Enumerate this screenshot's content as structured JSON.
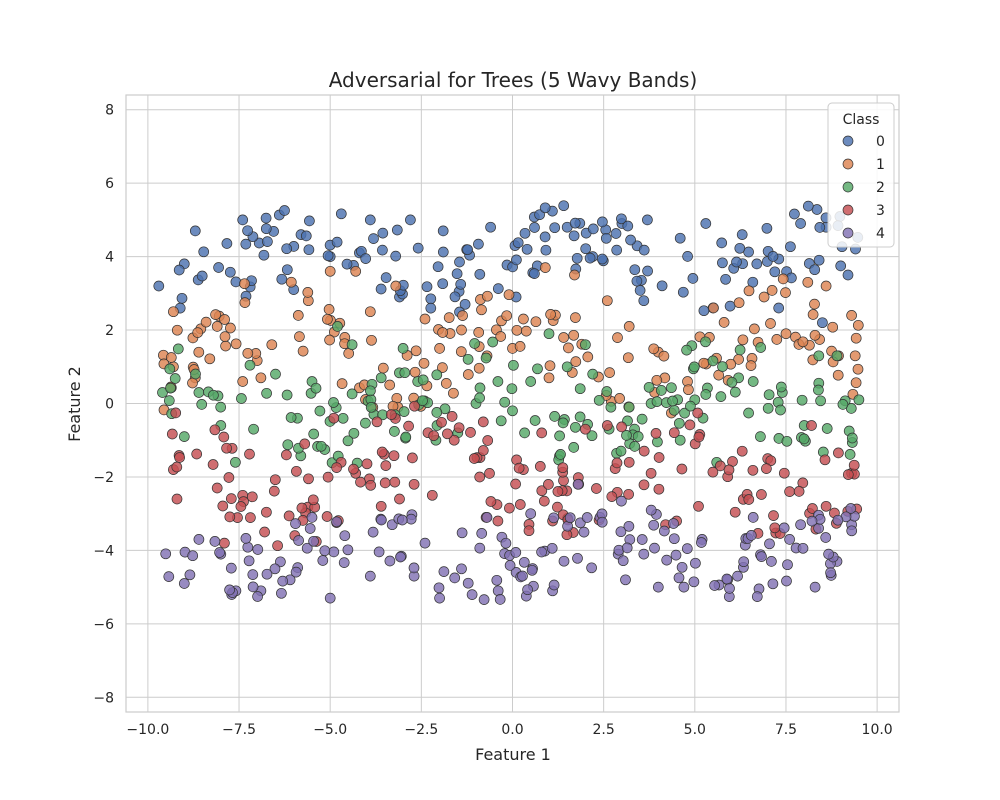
{
  "chart_data": {
    "type": "scatter",
    "title": "Adversarial for Trees (5 Wavy Bands)",
    "xlabel": "Feature 1",
    "ylabel": "Feature 2",
    "xlim": [
      -10.6,
      10.6
    ],
    "ylim": [
      -8.4,
      8.4
    ],
    "xticks": [
      -10.0,
      -7.5,
      -5.0,
      -2.5,
      0.0,
      2.5,
      5.0,
      7.5,
      10.0
    ],
    "xtick_labels": [
      "−10.0",
      "−7.5",
      "−5.0",
      "−2.5",
      "0.0",
      "2.5",
      "5.0",
      "7.5",
      "10.0"
    ],
    "yticks": [
      -8,
      -6,
      -4,
      -2,
      0,
      2,
      4,
      6,
      8
    ],
    "ytick_labels": [
      "−8",
      "−6",
      "−4",
      "−2",
      "0",
      "2",
      "4",
      "6",
      "8"
    ],
    "grid": true,
    "legend": {
      "title": "Class",
      "placement": "top-right"
    },
    "colors": [
      "#4c72b0",
      "#dd8452",
      "#55a868",
      "#c44e52",
      "#8172b3"
    ],
    "edge_color": "#333333",
    "series": [
      {
        "name": "0",
        "center": 4.0,
        "amplitude": 0.6,
        "spread": 0.5,
        "points": [
          [
            -9.7,
            3.2
          ],
          [
            -8.7,
            4.7
          ],
          [
            -7.4,
            5.0
          ],
          [
            -5.8,
            4.6
          ],
          [
            -5.0,
            4.0
          ],
          [
            -3.9,
            5.0
          ],
          [
            -2.8,
            5.0
          ],
          [
            -1.9,
            4.7
          ],
          [
            -0.6,
            4.8
          ],
          [
            0.4,
            4.2
          ],
          [
            1.5,
            4.8
          ],
          [
            3.0,
            4.9
          ],
          [
            3.7,
            5.0
          ],
          [
            4.6,
            4.5
          ],
          [
            5.3,
            4.9
          ],
          [
            6.3,
            4.6
          ],
          [
            7.9,
            4.9
          ],
          [
            8.6,
            4.8
          ],
          [
            9.2,
            3.5
          ],
          [
            -6.0,
            3.1
          ],
          [
            -3.1,
            2.9
          ],
          [
            -1.3,
            2.7
          ],
          [
            0.1,
            2.9
          ],
          [
            3.6,
            2.8
          ],
          [
            5.5,
            2.6
          ],
          [
            7.3,
            2.6
          ],
          [
            8.5,
            2.2
          ],
          [
            -9.0,
            3.8
          ],
          [
            -4.2,
            4.1
          ],
          [
            2.2,
            4.0
          ],
          [
            6.7,
            3.8
          ]
        ]
      },
      {
        "name": "1",
        "center": 1.5,
        "amplitude": 0.8,
        "spread": 0.6,
        "points": [
          [
            -9.3,
            2.5
          ],
          [
            -9.3,
            1.0
          ],
          [
            -8.1,
            2.1
          ],
          [
            -7.4,
            0.6
          ],
          [
            -6.6,
            1.6
          ],
          [
            -5.6,
            2.8
          ],
          [
            -5.0,
            3.6
          ],
          [
            -4.3,
            3.6
          ],
          [
            -3.9,
            2.5
          ],
          [
            -3.2,
            3.2
          ],
          [
            -2.4,
            2.3
          ],
          [
            -2.0,
            1.5
          ],
          [
            -1.4,
            2.0
          ],
          [
            -0.7,
            1.3
          ],
          [
            0.3,
            2.3
          ],
          [
            0.9,
            3.7
          ],
          [
            1.7,
            3.5
          ],
          [
            2.6,
            2.8
          ],
          [
            3.2,
            2.1
          ],
          [
            4.0,
            1.4
          ],
          [
            4.8,
            0.6
          ],
          [
            5.4,
            1.8
          ],
          [
            6.2,
            1.2
          ],
          [
            6.9,
            2.9
          ],
          [
            7.5,
            1.9
          ],
          [
            8.1,
            3.3
          ],
          [
            8.6,
            3.2
          ],
          [
            9.3,
            2.4
          ],
          [
            9.4,
            1.3
          ],
          [
            -8.7,
            0.7
          ],
          [
            -4.6,
            1.8
          ],
          [
            1.0,
            0.7
          ],
          [
            3.9,
            0.3
          ],
          [
            -6.9,
            0.7
          ],
          [
            0.0,
            1.5
          ]
        ]
      },
      {
        "name": "2",
        "center": 0.0,
        "amplitude": 0.7,
        "spread": 0.6,
        "points": [
          [
            -9.6,
            0.3
          ],
          [
            -9.0,
            -0.9
          ],
          [
            -8.6,
            0.3
          ],
          [
            -7.6,
            -1.6
          ],
          [
            -7.1,
            -0.7
          ],
          [
            -6.5,
            0.8
          ],
          [
            -5.9,
            -0.4
          ],
          [
            -5.5,
            0.6
          ],
          [
            -4.8,
            2.1
          ],
          [
            -4.4,
            1.6
          ],
          [
            -3.6,
            0.7
          ],
          [
            -3.0,
            1.5
          ],
          [
            -2.6,
            0.6
          ],
          [
            -2.1,
            -1.0
          ],
          [
            -1.5,
            -0.8
          ],
          [
            -1.0,
            0.0
          ],
          [
            -0.4,
            0.6
          ],
          [
            0.0,
            -0.2
          ],
          [
            0.5,
            0.6
          ],
          [
            1.0,
            1.9
          ],
          [
            1.5,
            1.0
          ],
          [
            2.2,
            0.8
          ],
          [
            2.7,
            -0.1
          ],
          [
            3.2,
            -0.1
          ],
          [
            3.8,
            0.0
          ],
          [
            4.6,
            -1.0
          ],
          [
            5.0,
            0.1
          ],
          [
            5.6,
            -1.6
          ],
          [
            6.2,
            0.7
          ],
          [
            6.8,
            -0.9
          ],
          [
            7.4,
            0.3
          ],
          [
            8.0,
            -0.6
          ],
          [
            8.4,
            1.3
          ],
          [
            8.9,
            1.3
          ],
          [
            9.5,
            0.1
          ],
          [
            -8.0,
            -0.6
          ],
          [
            -3.8,
            -0.3
          ],
          [
            2.0,
            1.6
          ],
          [
            6.6,
            0.6
          ]
        ]
      },
      {
        "name": "3",
        "center": -2.0,
        "amplitude": 0.8,
        "spread": 0.6,
        "points": [
          [
            -9.3,
            -1.8
          ],
          [
            -9.2,
            -2.6
          ],
          [
            -8.1,
            -2.3
          ],
          [
            -7.4,
            -2.5
          ],
          [
            -6.8,
            -3.5
          ],
          [
            -6.2,
            -1.4
          ],
          [
            -5.7,
            -1.1
          ],
          [
            -4.9,
            -0.4
          ],
          [
            -4.3,
            -1.9
          ],
          [
            -3.6,
            -2.8
          ],
          [
            -3.1,
            -2.6
          ],
          [
            -2.7,
            -2.2
          ],
          [
            -2.2,
            -2.5
          ],
          [
            -1.6,
            -1.0
          ],
          [
            -0.9,
            -2.0
          ],
          [
            -0.4,
            -3.2
          ],
          [
            0.3,
            -1.8
          ],
          [
            0.8,
            -0.8
          ],
          [
            1.4,
            -2.1
          ],
          [
            2.0,
            -0.7
          ],
          [
            2.6,
            -0.6
          ],
          [
            3.2,
            -1.6
          ],
          [
            3.8,
            -1.9
          ],
          [
            4.5,
            -3.2
          ],
          [
            5.1,
            -2.8
          ],
          [
            5.7,
            -1.7
          ],
          [
            6.3,
            -1.3
          ],
          [
            7.0,
            -1.5
          ],
          [
            7.6,
            -2.4
          ],
          [
            8.2,
            -0.6
          ],
          [
            8.6,
            -2.8
          ],
          [
            9.3,
            -1.9
          ],
          [
            -7.9,
            -3.8
          ],
          [
            -4.7,
            -1.6
          ],
          [
            1.1,
            -3.2
          ],
          [
            4.2,
            -3.3
          ],
          [
            -0.8,
            -0.5
          ]
        ]
      },
      {
        "name": "4",
        "center": -4.0,
        "amplitude": 0.5,
        "spread": 0.5,
        "points": [
          [
            -9.0,
            -4.9
          ],
          [
            -8.6,
            -3.7
          ],
          [
            -7.7,
            -5.2
          ],
          [
            -6.9,
            -5.1
          ],
          [
            -6.1,
            -4.8
          ],
          [
            -5.5,
            -3.1
          ],
          [
            -5.0,
            -5.3
          ],
          [
            -4.6,
            -3.6
          ],
          [
            -3.9,
            -4.7
          ],
          [
            -3.3,
            -3.3
          ],
          [
            -2.7,
            -4.7
          ],
          [
            -2.0,
            -5.3
          ],
          [
            -1.4,
            -4.5
          ],
          [
            -0.7,
            -3.1
          ],
          [
            0.1,
            -4.6
          ],
          [
            0.5,
            -3.0
          ],
          [
            1.1,
            -5.1
          ],
          [
            1.8,
            -2.2
          ],
          [
            2.4,
            -3.1
          ],
          [
            3.1,
            -4.8
          ],
          [
            3.6,
            -4.1
          ],
          [
            4.0,
            -5.0
          ],
          [
            4.7,
            -5.0
          ],
          [
            5.2,
            -3.7
          ],
          [
            5.9,
            -4.8
          ],
          [
            6.6,
            -3.1
          ],
          [
            7.1,
            -4.3
          ],
          [
            7.6,
            -3.7
          ],
          [
            8.3,
            -5.0
          ],
          [
            8.9,
            -4.3
          ],
          [
            9.3,
            -3.3
          ],
          [
            -8.0,
            -4.1
          ],
          [
            -2.4,
            -3.8
          ],
          [
            2.9,
            -4.1
          ],
          [
            7.9,
            -3.3
          ]
        ]
      }
    ]
  }
}
